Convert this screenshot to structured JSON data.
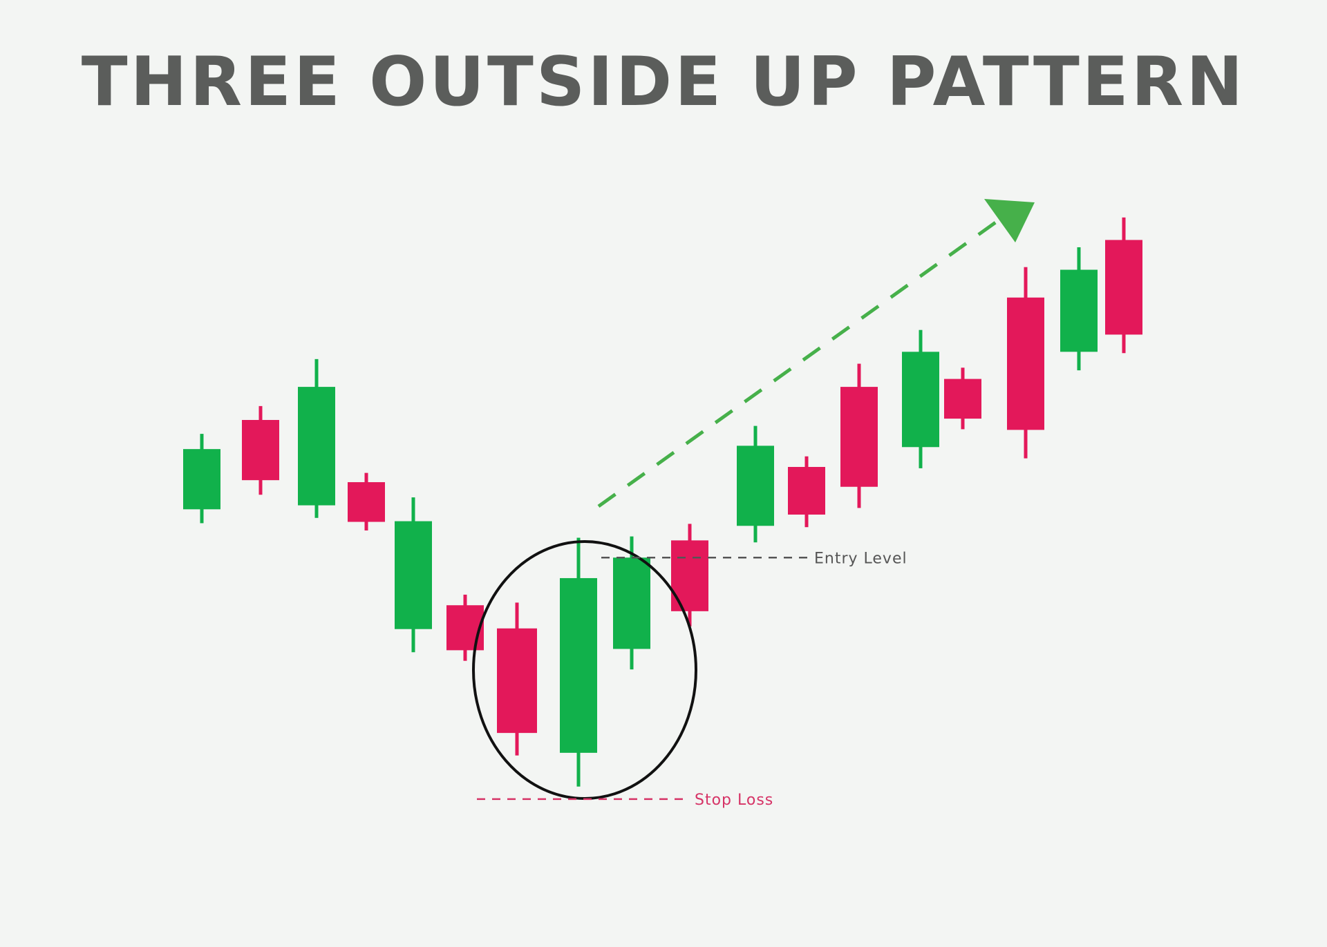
{
  "title": "THREE OUTSIDE UP PATTERN",
  "colors": {
    "background": "#f3f5f3",
    "bullish": "#11b14b",
    "bearish": "#e3185a",
    "title": "#5b5d5b",
    "entry_line": "#555555",
    "stop_line": "#d63366",
    "arrow": "#46b04a",
    "circle": "#111111"
  },
  "chart_data": {
    "type": "candlestick",
    "title": "THREE OUTSIDE UP PATTERN",
    "xlabel": "",
    "ylabel": "",
    "grid": false,
    "ylim": [
      0,
      100
    ],
    "candles": [
      {
        "open": 46.0,
        "close": 55.1,
        "high": 57.4,
        "low": 43.9,
        "direction": "up"
      },
      {
        "open": 59.5,
        "close": 50.4,
        "high": 61.6,
        "low": 48.2,
        "direction": "down"
      },
      {
        "open": 46.6,
        "close": 64.5,
        "high": 68.7,
        "low": 44.7,
        "direction": "up"
      },
      {
        "open": 50.1,
        "close": 44.1,
        "high": 51.5,
        "low": 42.8,
        "direction": "down"
      },
      {
        "open": 27.9,
        "close": 44.2,
        "high": 47.8,
        "low": 24.4,
        "direction": "up"
      },
      {
        "open": 31.5,
        "close": 24.7,
        "high": 33.1,
        "low": 23.1,
        "direction": "down"
      },
      {
        "open": 28.0,
        "close": 12.2,
        "high": 31.9,
        "low": 8.8,
        "direction": "down"
      },
      {
        "open": 9.2,
        "close": 35.6,
        "high": 41.7,
        "low": 4.1,
        "direction": "up"
      },
      {
        "open": 24.9,
        "close": 38.7,
        "high": 41.9,
        "low": 21.8,
        "direction": "up"
      },
      {
        "open": 41.3,
        "close": 30.6,
        "high": 43.8,
        "low": 28.3,
        "direction": "down"
      },
      {
        "open": 43.5,
        "close": 55.6,
        "high": 58.6,
        "low": 41.0,
        "direction": "up"
      },
      {
        "open": 52.4,
        "close": 45.2,
        "high": 54.0,
        "low": 43.3,
        "direction": "down"
      },
      {
        "open": 64.5,
        "close": 49.4,
        "high": 68.0,
        "low": 46.2,
        "direction": "down"
      },
      {
        "open": 55.4,
        "close": 69.8,
        "high": 73.1,
        "low": 52.2,
        "direction": "up"
      },
      {
        "open": 65.7,
        "close": 59.7,
        "high": 67.4,
        "low": 58.1,
        "direction": "down"
      },
      {
        "open": 78.0,
        "close": 58.0,
        "high": 82.6,
        "low": 53.7,
        "direction": "down"
      },
      {
        "open": 69.8,
        "close": 82.2,
        "high": 85.6,
        "low": 67.0,
        "direction": "up"
      },
      {
        "open": 86.7,
        "close": 72.4,
        "high": 90.1,
        "low": 69.6,
        "direction": "down"
      }
    ],
    "pattern_highlight": {
      "covers_candles": [
        6,
        7,
        8
      ]
    },
    "annotations": [
      {
        "label": "Entry Level",
        "y": 38.7
      },
      {
        "label": "Stop Loss",
        "y": 2.2
      },
      {
        "label": "",
        "type": "trend-arrow",
        "direction": "up"
      }
    ]
  }
}
